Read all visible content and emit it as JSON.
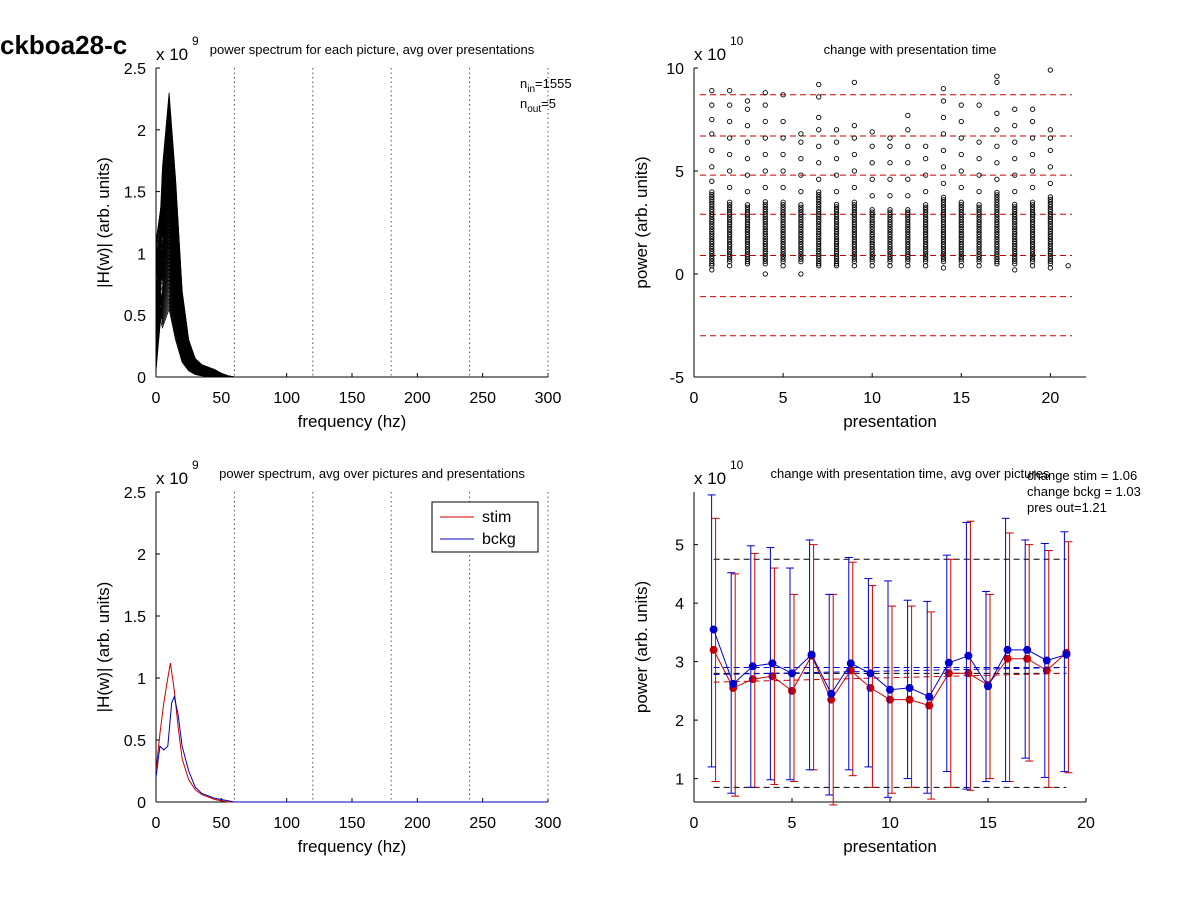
{
  "page_title": "ckboa28-c",
  "chart_data": [
    {
      "id": "tl",
      "type": "line",
      "title": "power spectrum for each picture, avg over presentations",
      "xlabel": "frequency (hz)",
      "ylabel": "|H(w)| (arb. units)",
      "xlim": [
        0,
        300
      ],
      "ylim": [
        0,
        2.5
      ],
      "xticks": [
        0,
        50,
        100,
        150,
        200,
        250,
        300
      ],
      "yticks": [
        0,
        0.5,
        1,
        1.5,
        2,
        2.5
      ],
      "yticklabels": [
        "0",
        "0.5",
        "1",
        "1.5",
        "2",
        "2.5"
      ],
      "exponent_label": "x 10",
      "exponent_power": "9",
      "vlines": [
        60,
        120,
        180,
        240,
        300
      ],
      "annotation_lines": [
        {
          "base": "n",
          "sub": "in",
          "rest": "=1555"
        },
        {
          "base": "n",
          "sub": "out",
          "rest": "=5"
        }
      ],
      "series_note": "1555 overlapping spectra, peak near 10 hz",
      "spectra": {
        "x": [
          0,
          5,
          10,
          15,
          20,
          25,
          30,
          35,
          40,
          45,
          50,
          55,
          60,
          300
        ],
        "envelope_low": [
          0.05,
          0.4,
          0.55,
          0.3,
          0.12,
          0.05,
          0.02,
          0.01,
          0.005,
          0.002,
          0.0,
          0.0,
          0.0,
          0.0
        ],
        "envelope_high": [
          1.1,
          1.7,
          2.3,
          1.6,
          0.7,
          0.3,
          0.15,
          0.1,
          0.08,
          0.06,
          0.03,
          0.01,
          0.0,
          0.0
        ],
        "color": "#000000"
      }
    },
    {
      "id": "tr",
      "type": "scatter",
      "title": "change with presentation time",
      "xlabel": "presentation",
      "ylabel": "power (arb. units)",
      "xlim": [
        0,
        22
      ],
      "ylim": [
        -5,
        10
      ],
      "xticks": [
        0,
        5,
        10,
        15,
        20
      ],
      "yticks": [
        -5,
        0,
        5,
        10
      ],
      "yticklabels": [
        "-5",
        "0",
        "5",
        "10"
      ],
      "exponent_label": "x 10",
      "exponent_power": "10",
      "hlines": [
        8.7,
        6.7,
        4.8,
        2.9,
        0.9,
        -1.1,
        -3.0
      ],
      "hline_color": "#cc0000",
      "marker_color": "#000000",
      "columns": [
        {
          "x": 1,
          "dense": [
            0.5,
            4.0
          ],
          "sparse": [
            0.2,
            0.4,
            4.5,
            5.2,
            6.0,
            6.8,
            7.5,
            8.2,
            8.9
          ]
        },
        {
          "x": 2,
          "dense": [
            0.6,
            3.6
          ],
          "sparse": [
            0.4,
            4.2,
            5.0,
            5.8,
            6.6,
            7.4,
            8.2,
            8.9
          ]
        },
        {
          "x": 3,
          "dense": [
            0.6,
            3.4
          ],
          "sparse": [
            0.5,
            4.0,
            4.8,
            5.6,
            6.4,
            7.2,
            8.0,
            8.4
          ]
        },
        {
          "x": 4,
          "dense": [
            0.5,
            3.6
          ],
          "sparse": [
            0.0,
            4.2,
            5.0,
            5.8,
            6.6,
            7.4,
            8.2,
            8.8
          ]
        },
        {
          "x": 5,
          "dense": [
            0.6,
            3.6
          ],
          "sparse": [
            0.4,
            4.2,
            5.0,
            5.8,
            6.6,
            7.4,
            8.7
          ]
        },
        {
          "x": 6,
          "dense": [
            0.6,
            3.4
          ],
          "sparse": [
            0.0,
            4.0,
            4.8,
            5.6,
            6.4,
            6.8
          ]
        },
        {
          "x": 7,
          "dense": [
            0.5,
            4.0
          ],
          "sparse": [
            0.4,
            4.6,
            5.4,
            6.2,
            7.0,
            7.6,
            8.6,
            9.2
          ]
        },
        {
          "x": 8,
          "dense": [
            0.5,
            3.4
          ],
          "sparse": [
            0.4,
            4.0,
            4.8,
            5.6,
            6.4,
            7.0
          ]
        },
        {
          "x": 9,
          "dense": [
            0.6,
            3.6
          ],
          "sparse": [
            0.4,
            4.2,
            5.0,
            5.8,
            6.6,
            7.2,
            9.3
          ]
        },
        {
          "x": 10,
          "dense": [
            0.6,
            3.2
          ],
          "sparse": [
            0.4,
            3.8,
            4.6,
            5.4,
            6.2,
            6.9
          ]
        },
        {
          "x": 11,
          "dense": [
            0.6,
            3.2
          ],
          "sparse": [
            0.4,
            3.8,
            4.6,
            5.4,
            6.2,
            6.6
          ]
        },
        {
          "x": 12,
          "dense": [
            0.6,
            3.2
          ],
          "sparse": [
            0.4,
            3.8,
            4.6,
            5.4,
            6.2,
            7.0,
            7.7
          ]
        },
        {
          "x": 13,
          "dense": [
            0.6,
            3.4
          ],
          "sparse": [
            0.4,
            4.0,
            4.8,
            5.6,
            6.2
          ]
        },
        {
          "x": 14,
          "dense": [
            0.6,
            3.8
          ],
          "sparse": [
            0.3,
            4.4,
            5.2,
            6.0,
            6.8,
            7.6,
            8.4,
            9.0
          ]
        },
        {
          "x": 15,
          "dense": [
            0.6,
            3.6
          ],
          "sparse": [
            0.4,
            4.2,
            5.0,
            5.8,
            6.6,
            7.4,
            8.2
          ]
        },
        {
          "x": 16,
          "dense": [
            0.6,
            3.4
          ],
          "sparse": [
            0.4,
            4.0,
            4.8,
            5.6,
            6.4,
            8.2
          ]
        },
        {
          "x": 17,
          "dense": [
            0.6,
            4.0
          ],
          "sparse": [
            0.5,
            4.6,
            5.4,
            6.2,
            7.0,
            7.8,
            9.3,
            9.6
          ]
        },
        {
          "x": 18,
          "dense": [
            0.5,
            3.4
          ],
          "sparse": [
            0.2,
            4.0,
            4.8,
            5.6,
            6.4,
            7.2,
            8.0
          ]
        },
        {
          "x": 19,
          "dense": [
            0.6,
            3.6
          ],
          "sparse": [
            0.4,
            4.2,
            5.0,
            5.8,
            6.6,
            7.4,
            8.0
          ]
        },
        {
          "x": 20,
          "dense": [
            0.5,
            3.8
          ],
          "sparse": [
            0.3,
            4.4,
            5.2,
            6.0,
            6.6,
            7.0,
            9.9
          ]
        },
        {
          "x": 21,
          "dense": [],
          "sparse": [
            0.4
          ]
        }
      ]
    },
    {
      "id": "bl",
      "type": "line",
      "title": "power spectrum, avg over pictures and presentations",
      "xlabel": "frequency (hz)",
      "ylabel": "|H(w)| (arb. units)",
      "xlim": [
        0,
        300
      ],
      "ylim": [
        0,
        2.5
      ],
      "xticks": [
        0,
        50,
        100,
        150,
        200,
        250,
        300
      ],
      "yticks": [
        0,
        0.5,
        1,
        1.5,
        2,
        2.5
      ],
      "yticklabels": [
        "0",
        "0.5",
        "1",
        "1.5",
        "2",
        "2.5"
      ],
      "exponent_label": "x 10",
      "exponent_power": "9",
      "vlines": [
        60,
        120,
        180,
        240,
        300
      ],
      "legend_position": "top-right",
      "series": [
        {
          "name": "stim",
          "color": "#cc0000",
          "x": [
            0,
            3,
            6,
            9,
            11,
            14,
            17,
            20,
            25,
            30,
            35,
            40,
            45,
            50,
            55,
            60,
            300
          ],
          "values": [
            0.25,
            0.55,
            0.8,
            1.0,
            1.12,
            0.9,
            0.6,
            0.35,
            0.18,
            0.1,
            0.06,
            0.04,
            0.02,
            0.01,
            0.0,
            0.0,
            0.0
          ]
        },
        {
          "name": "bckg",
          "color": "#0000bb",
          "x": [
            0,
            3,
            6,
            9,
            12,
            14,
            17,
            20,
            25,
            30,
            35,
            40,
            45,
            50,
            55,
            60,
            300
          ],
          "values": [
            0.2,
            0.45,
            0.42,
            0.45,
            0.8,
            0.85,
            0.7,
            0.45,
            0.25,
            0.12,
            0.07,
            0.05,
            0.03,
            0.02,
            0.01,
            0.0,
            0.0
          ]
        }
      ]
    },
    {
      "id": "br",
      "type": "line",
      "title": "change with presentation time, avg over pictures",
      "xlabel": "presentation",
      "ylabel": "power (arb. units)",
      "xlim": [
        0,
        20
      ],
      "ylim": [
        0.6,
        5.9
      ],
      "xticks": [
        0,
        5,
        10,
        15,
        20
      ],
      "yticks": [
        1,
        2,
        3,
        4,
        5
      ],
      "yticklabels": [
        "1",
        "2",
        "3",
        "4",
        "5"
      ],
      "exponent_label": "x 10",
      "exponent_power": "10",
      "annotations": [
        "change stim = 1.06",
        "change bckg = 1.03",
        "pres out=1.21"
      ],
      "hlines_black": [
        4.75,
        0.85
      ],
      "x": [
        1,
        2,
        3,
        4,
        5,
        6,
        7,
        8,
        9,
        10,
        11,
        12,
        13,
        14,
        15,
        16,
        17,
        18,
        19
      ],
      "series": [
        {
          "name": "stim",
          "color": "#cc0000",
          "values": [
            3.2,
            2.55,
            2.7,
            2.75,
            2.5,
            3.1,
            2.35,
            2.85,
            2.55,
            2.35,
            2.35,
            2.25,
            2.8,
            2.8,
            2.6,
            3.05,
            3.05,
            2.85,
            3.15
          ],
          "err_high": [
            5.45,
            4.5,
            4.85,
            4.6,
            4.15,
            5.0,
            4.15,
            4.7,
            4.3,
            3.95,
            3.95,
            3.85,
            4.75,
            5.4,
            4.15,
            5.2,
            5.0,
            4.9,
            5.05
          ],
          "err_low": [
            0.95,
            0.7,
            0.85,
            0.9,
            0.95,
            1.15,
            0.55,
            1.05,
            0.85,
            0.75,
            0.85,
            0.65,
            0.85,
            0.8,
            1.0,
            0.95,
            1.3,
            0.85,
            1.1
          ],
          "trend": [
            2.65,
            2.8
          ]
        },
        {
          "name": "bckg",
          "color": "#0000cc",
          "values": [
            3.55,
            2.62,
            2.92,
            2.97,
            2.8,
            3.12,
            2.45,
            2.97,
            2.8,
            2.52,
            2.55,
            2.4,
            2.98,
            3.1,
            2.58,
            3.2,
            3.2,
            3.02,
            3.12
          ],
          "err_high": [
            5.85,
            4.52,
            4.98,
            4.95,
            4.6,
            5.08,
            4.15,
            4.78,
            4.42,
            4.38,
            4.05,
            4.03,
            4.82,
            5.38,
            4.2,
            5.45,
            5.08,
            5.02,
            5.22
          ],
          "err_low": [
            1.2,
            0.75,
            0.85,
            0.98,
            0.98,
            1.15,
            0.72,
            1.15,
            1.2,
            0.68,
            1.0,
            0.75,
            1.12,
            0.82,
            0.95,
            0.95,
            1.35,
            1.02,
            1.12
          ],
          "trend": [
            2.78,
            2.9
          ]
        }
      ],
      "hlines_dashed_blue": [
        2.9
      ],
      "hlines_dashed_black": [
        2.8
      ]
    }
  ]
}
